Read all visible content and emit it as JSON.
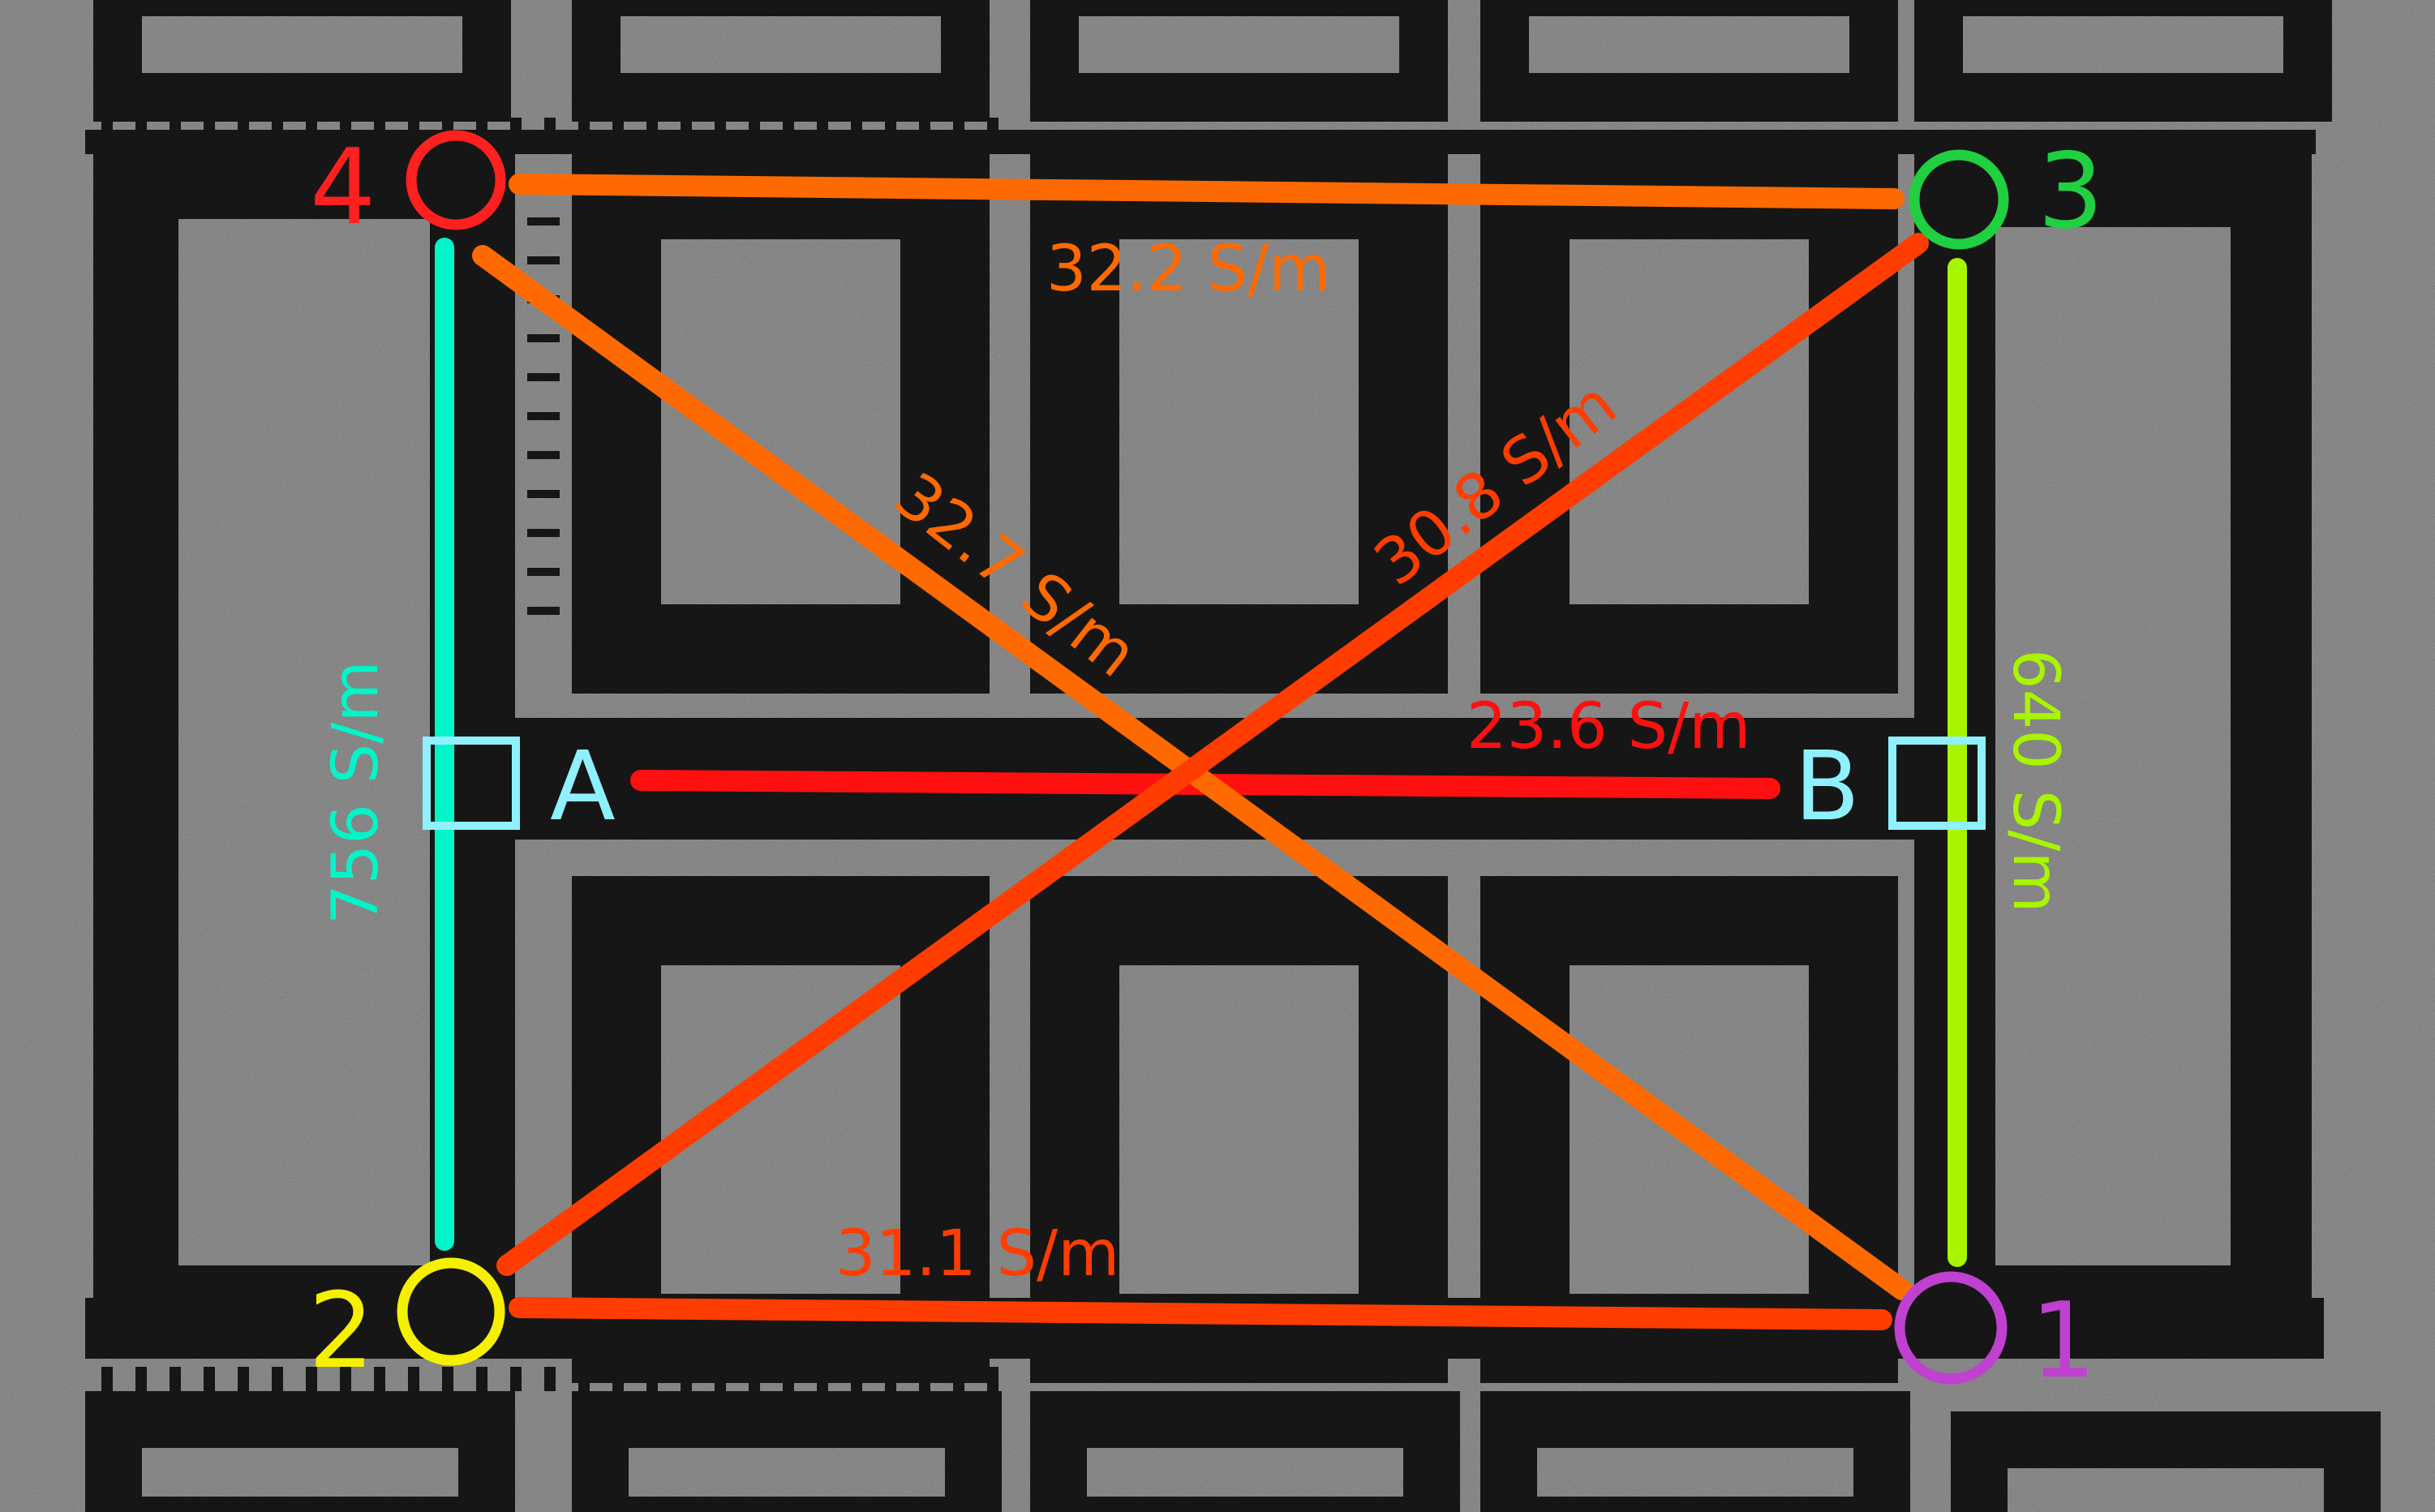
{
  "colors": {
    "background": "#8a8a8a",
    "material": "#161616",
    "material_edge": "#2a2a2a",
    "path_orange": "#ff6a00",
    "path_orangered": "#ff3d00",
    "path_red": "#ff1010",
    "path_cyan": "#00f5c8",
    "path_lime": "#a8f500",
    "pad_square": "#8ff0ff",
    "node_1": "#c040d0",
    "node_2": "#f5f000",
    "node_3": "#20d040",
    "node_4": "#ff2020"
  },
  "nodes": {
    "n1": {
      "label": "1",
      "color": "#c040d0"
    },
    "n2": {
      "label": "2",
      "color": "#f5f000"
    },
    "n3": {
      "label": "3",
      "color": "#20d040"
    },
    "n4": {
      "label": "4",
      "color": "#ff2020"
    }
  },
  "pads": {
    "a": {
      "label": "A"
    },
    "b": {
      "label": "B"
    }
  },
  "measurements": [
    {
      "id": "4-3",
      "from": "4",
      "to": "3",
      "label": "32.2 S/m",
      "color": "#ff6a00"
    },
    {
      "id": "4-1",
      "from": "4",
      "to": "1",
      "label": "32.7 S/m",
      "color": "#ff6a00"
    },
    {
      "id": "2-3",
      "from": "2",
      "to": "3",
      "label": "30.8 S/m",
      "color": "#ff3d00"
    },
    {
      "id": "A-B",
      "from": "A",
      "to": "B",
      "label": "23.6 S/m",
      "color": "#ff1010"
    },
    {
      "id": "2-1",
      "from": "2",
      "to": "1",
      "label": "31.1 S/m",
      "color": "#ff3d00"
    },
    {
      "id": "4-2",
      "from": "4",
      "to": "2",
      "label": "756 S/m",
      "color": "#00f5c8"
    },
    {
      "id": "3-1",
      "from": "3",
      "to": "1",
      "label": "640 S/m",
      "color": "#a8f500"
    }
  ]
}
